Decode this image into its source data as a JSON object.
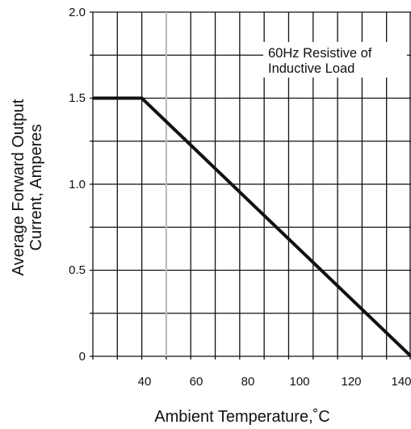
{
  "chart_data": {
    "type": "line",
    "xlabel": "Ambient Temperature,˚C",
    "ylabel_lines": [
      "Average Forward Output",
      "Current, Amperes"
    ],
    "xlim": [
      20,
      150
    ],
    "ylim": [
      0,
      2.0
    ],
    "x_ticks": [
      40,
      60,
      80,
      100,
      120,
      140
    ],
    "y_ticks": [
      0,
      0.5,
      1.0,
      1.5,
      2.0
    ],
    "x_tick_labels": [
      "40",
      "60",
      "80",
      "100",
      "120",
      "140"
    ],
    "y_tick_labels": [
      "0",
      "0.5",
      "1.0",
      "1.5",
      "2.0"
    ],
    "grid": true,
    "annotation_lines": [
      "60Hz Resistive of",
      "Inductive Load"
    ],
    "highlight_x": 50,
    "series": [
      {
        "x": [
          20,
          40,
          150
        ],
        "y": [
          1.5,
          1.5,
          0
        ]
      }
    ]
  }
}
